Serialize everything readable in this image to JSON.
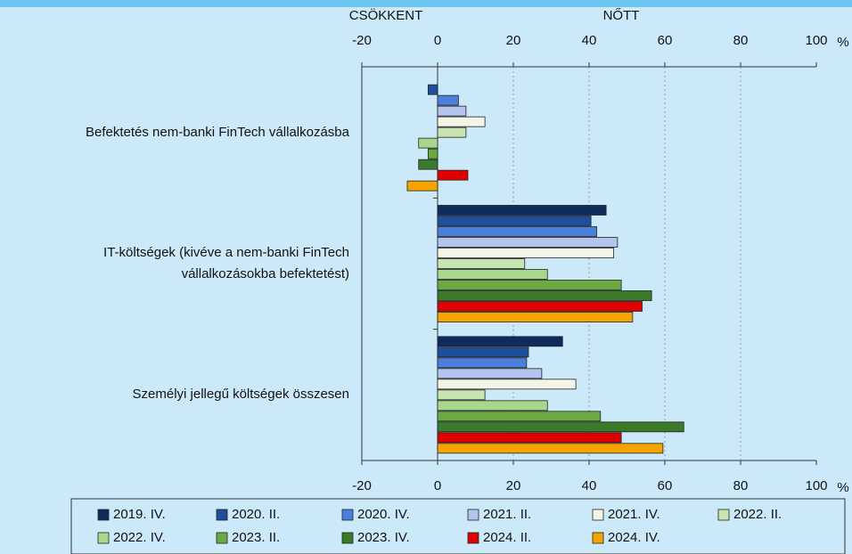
{
  "chart_data": {
    "type": "hbar",
    "annotations": [
      "CSÖKKENT",
      "NŐTT"
    ],
    "unit": "%",
    "categories": [
      "Befektetés nem-banki FinTech vállalkozásba",
      "IT-költségek (kivéve a nem-banki FinTech vállalkozásokba befektetést)",
      "Személyi jellegű költségek összesen"
    ],
    "series": [
      {
        "name": "2019. IV.",
        "color": "#0d2b5c",
        "values": [
          0,
          44.5,
          33
        ]
      },
      {
        "name": "2020. II.",
        "color": "#1f4e9c",
        "values": [
          -2.5,
          40.5,
          24
        ]
      },
      {
        "name": "2020. IV.",
        "color": "#4a7fdc",
        "values": [
          5.5,
          42,
          23.5
        ]
      },
      {
        "name": "2021. II.",
        "color": "#b4c4ee",
        "values": [
          7.5,
          47.5,
          27.5
        ]
      },
      {
        "name": "2021. IV.",
        "color": "#f3f6e6",
        "values": [
          12.5,
          46.5,
          36.5
        ]
      },
      {
        "name": "2022. II.",
        "color": "#c8e4b0",
        "values": [
          7.5,
          23,
          12.5
        ]
      },
      {
        "name": "2022. IV.",
        "color": "#a8d88c",
        "values": [
          -5,
          29,
          29
        ]
      },
      {
        "name": "2023. II.",
        "color": "#6aaa40",
        "values": [
          -2.5,
          48.5,
          43
        ]
      },
      {
        "name": "2023. IV.",
        "color": "#3a7a28",
        "values": [
          -5,
          56.5,
          65
        ]
      },
      {
        "name": "2024. II.",
        "color": "#e00000",
        "values": [
          8,
          54,
          48.5
        ]
      },
      {
        "name": "2024. IV.",
        "color": "#f5a300",
        "values": [
          -8,
          51.5,
          59.5
        ]
      }
    ],
    "xlim": [
      -20,
      100
    ],
    "xticks": [
      -20,
      0,
      20,
      40,
      60,
      80,
      100
    ],
    "grid": true
  }
}
